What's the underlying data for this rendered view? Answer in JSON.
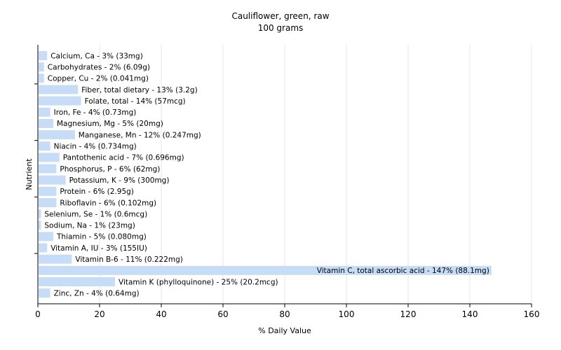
{
  "chart_data": {
    "type": "bar",
    "orientation": "horizontal",
    "title": "Cauliflower, green, raw",
    "subtitle": "100 grams",
    "xlabel": "% Daily Value",
    "ylabel": "Nutrient",
    "xlim": [
      0,
      160
    ],
    "xticks": [
      0,
      20,
      40,
      60,
      80,
      100,
      120,
      140,
      160
    ],
    "grid": true,
    "bar_color": "#c6dcf7",
    "grid_color": "#e6e6e6",
    "categories": [
      "Calcium, Ca - 3% (33mg)",
      "Carbohydrates - 2% (6.09g)",
      "Copper, Cu - 2% (0.041mg)",
      "Fiber, total dietary - 13% (3.2g)",
      "Folate, total - 14% (57mcg)",
      "Iron, Fe - 4% (0.73mg)",
      "Magnesium, Mg - 5% (20mg)",
      "Manganese, Mn - 12% (0.247mg)",
      "Niacin - 4% (0.734mg)",
      "Pantothenic acid - 7% (0.696mg)",
      "Phosphorus, P - 6% (62mg)",
      "Potassium, K - 9% (300mg)",
      "Protein - 6% (2.95g)",
      "Riboflavin - 6% (0.102mg)",
      "Selenium, Se - 1% (0.6mcg)",
      "Sodium, Na - 1% (23mg)",
      "Thiamin - 5% (0.080mg)",
      "Vitamin A, IU - 3% (155IU)",
      "Vitamin B-6 - 11% (0.222mg)",
      "Vitamin C, total ascorbic acid - 147% (88.1mg)",
      "Vitamin K (phylloquinone) - 25% (20.2mcg)",
      "Zinc, Zn - 4% (0.64mg)"
    ],
    "values": [
      3,
      2,
      2,
      13,
      14,
      4,
      5,
      12,
      4,
      7,
      6,
      9,
      6,
      6,
      1,
      1,
      5,
      3,
      11,
      147,
      25,
      4
    ]
  }
}
